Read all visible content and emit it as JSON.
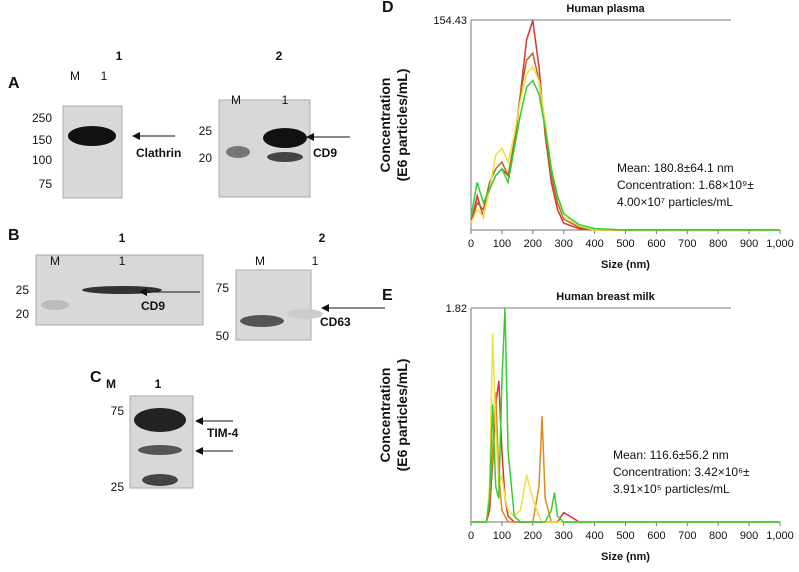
{
  "blots": [
    {
      "panel": "A",
      "header": "1",
      "lanes": [
        "M",
        "1"
      ],
      "markers": [
        "250",
        "150",
        "100",
        "75"
      ],
      "target": "Clathrin"
    },
    {
      "header": "2",
      "lanes": [
        "M",
        "1"
      ],
      "markers": [
        "25",
        "20"
      ],
      "target": "CD9"
    },
    {
      "panel": "B",
      "header": "1",
      "lanes": [
        "M",
        "1"
      ],
      "markers": [
        "25",
        "20"
      ],
      "target": "CD9"
    },
    {
      "header": "2",
      "lanes": [
        "M",
        "1"
      ],
      "markers": [
        "75",
        "50"
      ],
      "target": "CD63"
    },
    {
      "panel": "C",
      "header": "1",
      "lanes": [
        "M"
      ],
      "markers": [
        "75",
        "25"
      ],
      "target": "TIM-4"
    }
  ],
  "chart_data": [
    {
      "type": "line",
      "panel": "D",
      "title": "Human plasma",
      "y_label": [
        "Concentration",
        "(E6 particles/mL)"
      ],
      "x_label": "Size (nm)",
      "annotation": [
        "Mean: 180.8±64.1 nm",
        "Concentration: 1.68×10⁹±",
        "4.00×10⁷ particles/mL"
      ],
      "x": [
        0,
        20,
        40,
        60,
        80,
        100,
        120,
        140,
        160,
        180,
        200,
        220,
        240,
        260,
        280,
        300,
        350,
        400,
        500,
        600,
        700,
        800,
        900,
        1000
      ],
      "series": [
        {
          "color": "#e03030",
          "values": [
            5,
            25,
            10,
            30,
            40,
            45,
            40,
            60,
            100,
            140,
            154,
            120,
            70,
            35,
            15,
            5,
            1,
            0,
            0,
            0,
            0,
            0,
            0,
            0
          ]
        },
        {
          "color": "#b06a2a",
          "values": [
            5,
            20,
            15,
            35,
            45,
            50,
            40,
            65,
            100,
            125,
            130,
            110,
            75,
            40,
            20,
            8,
            2,
            0,
            0,
            0,
            0,
            0,
            0,
            0
          ]
        },
        {
          "color": "#f0e040",
          "values": [
            5,
            15,
            10,
            30,
            55,
            60,
            50,
            70,
            95,
            115,
            120,
            110,
            80,
            45,
            25,
            10,
            3,
            0,
            0,
            0,
            0,
            0,
            0,
            0
          ]
        },
        {
          "color": "#30d030",
          "values": [
            10,
            35,
            20,
            30,
            40,
            45,
            35,
            60,
            85,
            105,
            110,
            100,
            75,
            45,
            25,
            12,
            4,
            1,
            0,
            0,
            0,
            0,
            0,
            0
          ]
        }
      ],
      "xlim": [
        0,
        1000
      ],
      "ylim": [
        0,
        154.43
      ],
      "xticks": [
        0,
        100,
        200,
        300,
        400,
        500,
        600,
        700,
        800,
        900,
        {
          "value": 1000,
          "label": "1,000"
        }
      ],
      "yticks": [
        154.43
      ]
    },
    {
      "type": "line",
      "panel": "E",
      "title": "Human breast milk",
      "y_label": [
        "Concentration",
        "(E6 particles/mL)"
      ],
      "x_label": "Size (nm)",
      "annotation": [
        "Mean: 116.6±56.2 nm",
        "Concentration: 3.42×10⁶±",
        "3.91×10⁵ particles/mL"
      ],
      "x": [
        0,
        50,
        60,
        70,
        80,
        90,
        100,
        110,
        120,
        140,
        160,
        180,
        200,
        220,
        230,
        240,
        260,
        270,
        280,
        300,
        320,
        350,
        400,
        1000
      ],
      "series": [
        {
          "color": "#e03030",
          "values": [
            0,
            0,
            0.1,
            0.5,
            1.0,
            1.2,
            0.6,
            0.2,
            0.05,
            0,
            0,
            0,
            0,
            0,
            0,
            0,
            0,
            0,
            0,
            0.08,
            0.05,
            0,
            0,
            0
          ]
        },
        {
          "color": "#e08a20",
          "values": [
            0,
            0,
            0.2,
            0.6,
            1.1,
            0.4,
            0.1,
            0.05,
            0,
            0,
            0,
            0,
            0,
            0.3,
            0.9,
            0.2,
            0,
            0,
            0,
            0,
            0,
            0,
            0,
            0
          ]
        },
        {
          "color": "#f0e040",
          "values": [
            0,
            0,
            0.3,
            1.6,
            0.8,
            0.3,
            0.4,
            0.2,
            0.1,
            0.05,
            0.1,
            0.4,
            0.2,
            0.05,
            0,
            0,
            0,
            0,
            0,
            0,
            0,
            0,
            0,
            0
          ]
        },
        {
          "color": "#30d030",
          "values": [
            0,
            0,
            0.2,
            1.0,
            0.3,
            0.2,
            1.2,
            1.82,
            0.6,
            0.05,
            0,
            0,
            0,
            0,
            0,
            0,
            0.1,
            0.25,
            0.05,
            0,
            0,
            0,
            0,
            0
          ]
        }
      ],
      "xlim": [
        0,
        1000
      ],
      "ylim": [
        0,
        1.82
      ],
      "xticks": [
        0,
        100,
        200,
        300,
        400,
        500,
        600,
        700,
        800,
        900,
        {
          "value": 1000,
          "label": "1,000"
        }
      ],
      "yticks": [
        1.82
      ]
    }
  ]
}
